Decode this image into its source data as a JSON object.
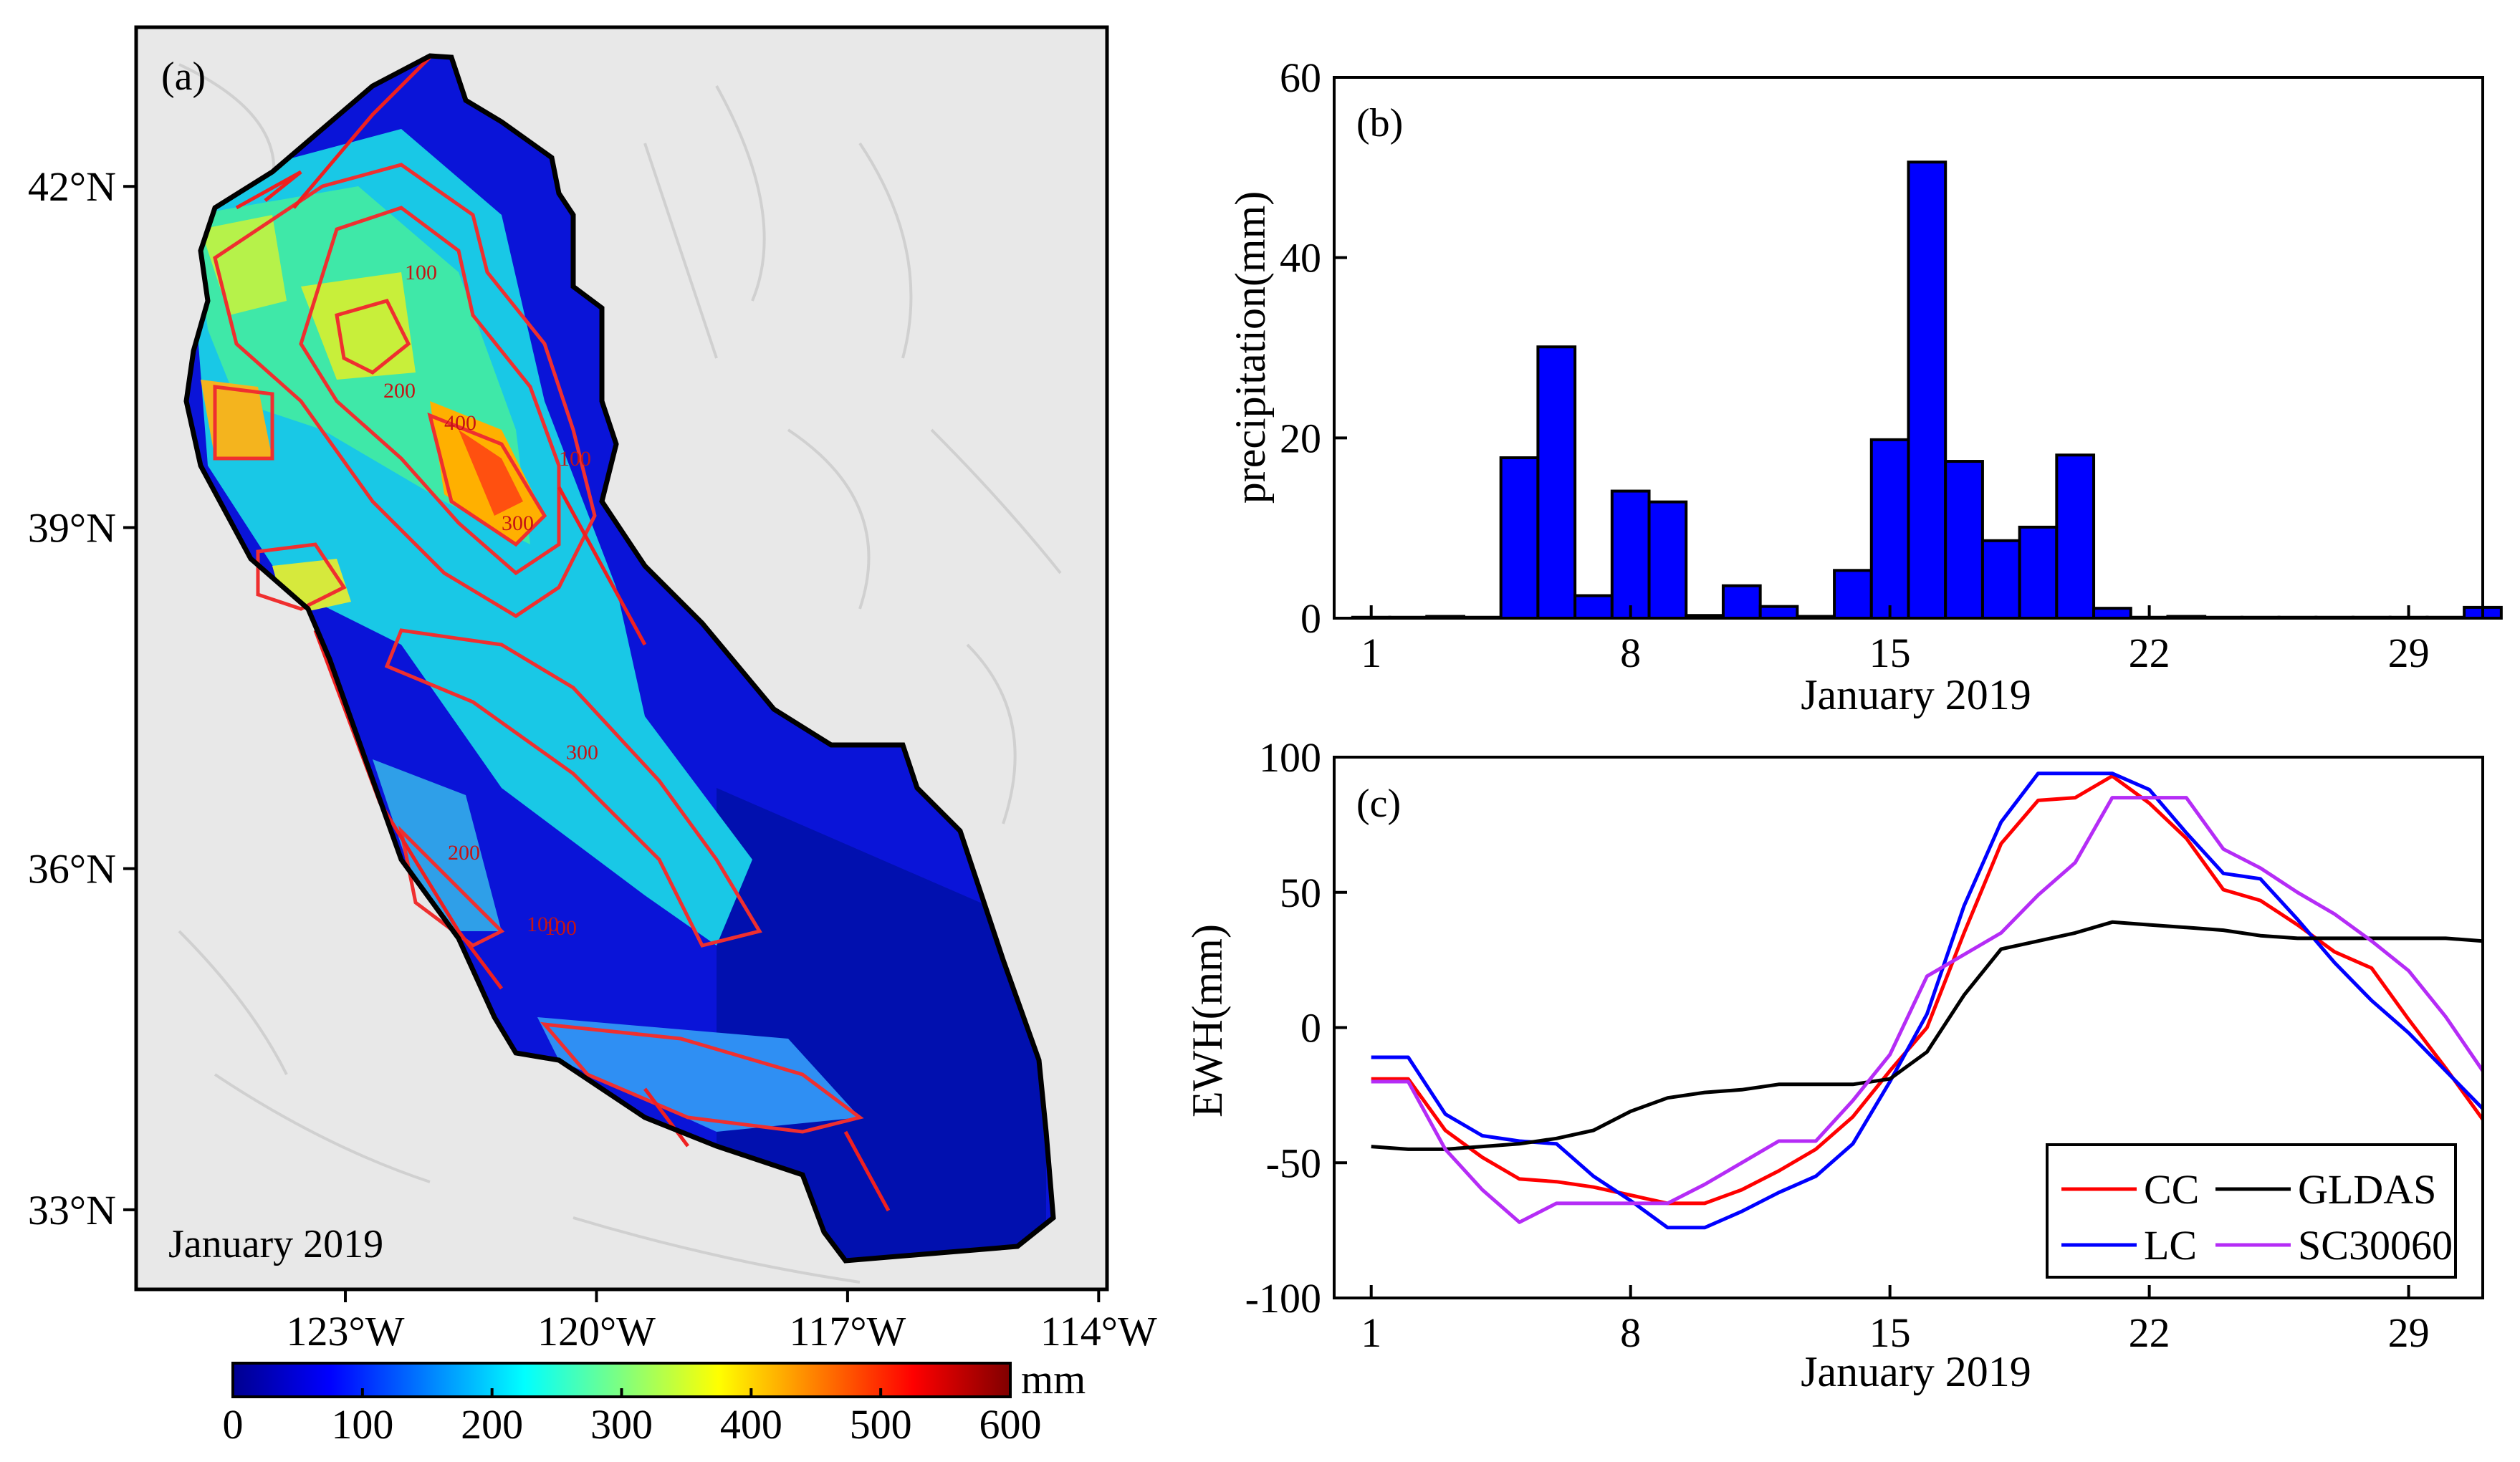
{
  "chart_data": [
    {
      "panel": "a",
      "type": "heatmap",
      "label": "(a)",
      "map_caption": "January 2019",
      "lat_ticks": [
        "42°N",
        "39°N",
        "36°N",
        "33°N"
      ],
      "lon_ticks": [
        "123°W",
        "120°W",
        "117°W",
        "114°W"
      ],
      "lat_values": [
        42,
        39,
        36,
        33
      ],
      "lon_values": [
        -123,
        -120,
        -117,
        -114
      ],
      "lon_range": [
        -125.5,
        -113.9
      ],
      "lat_range": [
        32.3,
        43.4
      ],
      "contour_labels": [
        "100",
        "200",
        "300",
        "400",
        "100",
        "300",
        "100",
        "100",
        "200"
      ],
      "colorbar": {
        "min": 0,
        "max": 600,
        "ticks": [
          "0",
          "100",
          "200",
          "300",
          "400",
          "500",
          "600"
        ],
        "tick_values": [
          0,
          100,
          200,
          300,
          400,
          500,
          600
        ],
        "unit": "mm"
      }
    },
    {
      "panel": "b",
      "type": "bar",
      "label": "(b)",
      "ylabel": "precipitation(mm)",
      "xlabel": "January 2019",
      "ylim": [
        0,
        60
      ],
      "xlim": [
        0,
        31
      ],
      "yticks": [
        0,
        20,
        40,
        60
      ],
      "xticks": [
        1,
        8,
        15,
        22,
        29
      ],
      "days": [
        1,
        2,
        3,
        4,
        5,
        6,
        7,
        8,
        9,
        10,
        11,
        12,
        13,
        14,
        15,
        16,
        17,
        18,
        19,
        20,
        21,
        22,
        23,
        24,
        25,
        26,
        27,
        28,
        29,
        30,
        31
      ],
      "values": [
        0.1,
        0.1,
        0.2,
        0.1,
        17.8,
        30.1,
        2.5,
        14.1,
        12.9,
        0.3,
        3.6,
        1.3,
        0.2,
        5.3,
        19.8,
        50.6,
        17.4,
        8.6,
        10.1,
        18.1,
        1.1,
        0.1,
        0.2,
        0.1,
        0.1,
        0.1,
        0.1,
        0.1,
        0.1,
        0.1,
        1.2
      ]
    },
    {
      "panel": "c",
      "type": "line",
      "label": "(c)",
      "ylabel": "EWH(mm)",
      "xlabel": "January 2019",
      "ylim": [
        -100,
        100
      ],
      "xlim": [
        0,
        31
      ],
      "yticks": [
        -100,
        -50,
        0,
        50,
        100
      ],
      "xticks": [
        1,
        8,
        15,
        22,
        29
      ],
      "x": [
        1,
        2,
        3,
        4,
        5,
        6,
        7,
        8,
        9,
        10,
        11,
        12,
        13,
        14,
        15,
        16,
        17,
        18,
        19,
        20,
        21,
        22,
        23,
        24,
        25,
        26,
        27,
        28,
        29,
        30,
        31
      ],
      "series": [
        {
          "name": "CC",
          "color": "#ff0000",
          "values": [
            -19,
            -19,
            -38,
            -48,
            -56,
            -57,
            -59,
            -62,
            -65,
            -65,
            -60,
            -53,
            -45,
            -33,
            -16,
            0,
            35,
            68,
            84,
            85,
            93,
            83,
            70,
            51,
            47,
            38,
            28,
            22,
            3,
            -15,
            -34
          ]
        },
        {
          "name": "LC",
          "color": "#0000ff",
          "values": [
            -11,
            -11,
            -32,
            -40,
            -42,
            -43,
            -55,
            -64,
            -74,
            -74,
            -68,
            -61,
            -55,
            -43,
            -20,
            5,
            45,
            76,
            94,
            94,
            94,
            88,
            72,
            57,
            55,
            40,
            24,
            10,
            -2,
            -16,
            -30
          ]
        },
        {
          "name": "GLDAS",
          "color": "#000000",
          "values": [
            -44,
            -45,
            -45,
            -44,
            -43,
            -41,
            -38,
            -31,
            -26,
            -24,
            -23,
            -21,
            -21,
            -21,
            -19,
            -9,
            12,
            29,
            32,
            35,
            39,
            38,
            37,
            36,
            34,
            33,
            33,
            33,
            33,
            33,
            32
          ]
        },
        {
          "name": "SC30060",
          "color": "#b52cf6",
          "values": [
            -20,
            -20,
            -45,
            -60,
            -72,
            -65,
            -65,
            -65,
            -65,
            -58,
            -50,
            -42,
            -42,
            -27,
            -10,
            19,
            27,
            35,
            49,
            61,
            85,
            85,
            85,
            66,
            59,
            50,
            42,
            32,
            21,
            4,
            -16
          ]
        }
      ]
    }
  ]
}
